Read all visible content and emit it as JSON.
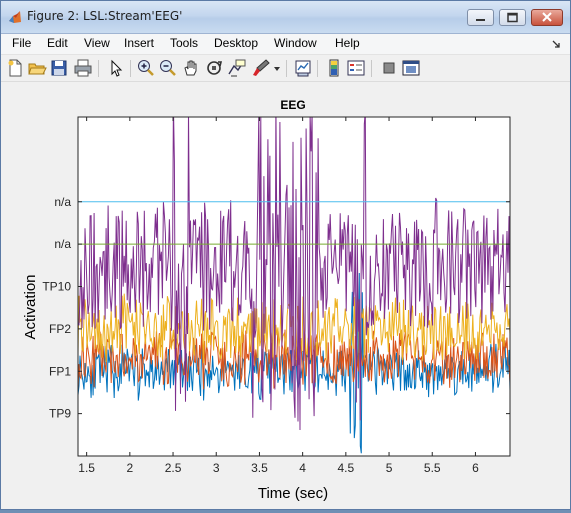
{
  "window": {
    "title": "Figure 2: LSL:Stream'EEG'"
  },
  "menu": [
    "File",
    "Edit",
    "View",
    "Insert",
    "Tools",
    "Desktop",
    "Window",
    "Help"
  ],
  "toolbar_icons": [
    "new-figure-icon",
    "open-file-icon",
    "save-icon",
    "print-icon",
    "pointer-icon",
    "zoom-in-icon",
    "zoom-out-icon",
    "pan-icon",
    "rotate-icon",
    "data-cursor-icon",
    "brush-icon",
    "dropdown-arrow-icon",
    "link-plot-icon",
    "colorbar-icon",
    "legend-icon",
    "hide-plot-tools-icon",
    "show-plot-tools-icon"
  ],
  "chart_data": {
    "type": "line",
    "title": "EEG",
    "xlabel": "Time (sec)",
    "ylabel": "Activation",
    "xlim": [
      1.4,
      6.4
    ],
    "xticks": [
      "1.5",
      "2",
      "2.5",
      "3",
      "3.5",
      "4",
      "4.5",
      "5",
      "5.5",
      "6"
    ],
    "xtick_values": [
      1.5,
      2,
      2.5,
      3,
      3.5,
      4,
      4.5,
      5,
      5.5,
      6
    ],
    "yticks": [
      "TP9",
      "FP1",
      "FP2",
      "TP10",
      "n/a",
      "n/a"
    ],
    "ytick_levels": [
      1,
      2,
      3,
      4,
      5,
      6
    ],
    "ylim": [
      0,
      8
    ],
    "series": [
      {
        "color": "#0072bd",
        "baseline": 2.0,
        "amp": 0.55,
        "seed": 11
      },
      {
        "color": "#d95319",
        "baseline": 2.3,
        "amp": 0.6,
        "seed": 23
      },
      {
        "color": "#edb120",
        "baseline": 3.0,
        "amp": 0.7,
        "seed": 37
      },
      {
        "color": "#7e2f8e",
        "baseline": 4.5,
        "amp": 1.5,
        "seed": 53
      },
      {
        "color": "#77ac30",
        "baseline": 5.0,
        "amp": 0.0,
        "seed": 0
      },
      {
        "color": "#4dbeee",
        "baseline": 6.0,
        "amp": 0.0,
        "seed": 0
      }
    ]
  }
}
